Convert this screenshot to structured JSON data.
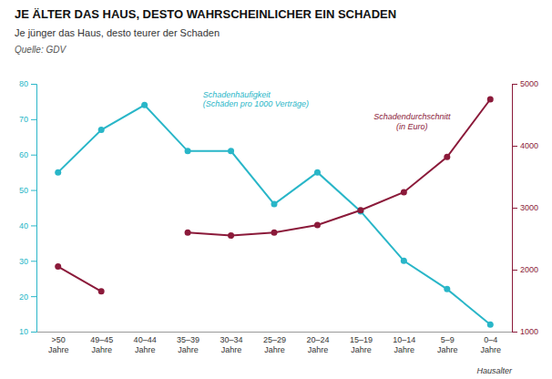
{
  "chart_data": {
    "type": "line",
    "title": "JE ÄLTER DAS HAUS, DESTO WAHRSCHEINLICHER EIN SCHADEN",
    "subtitle": "Je jünger das Haus, desto teurer der Schaden",
    "source": "Quelle: GDV",
    "x_label": "Hausalter",
    "categories": [
      ">50\nJahre",
      "49–45\nJahre",
      "40–44\nJahre",
      "35–39\nJahre",
      "30–34\nJahre",
      "25–29\nJahre",
      "20–24\nJahre",
      "15–19\nJahre",
      "10–14\nJahre",
      "5–9\nJahre",
      "0–4\nJahre"
    ],
    "series": [
      {
        "name": "Schadenhäufigkeit\n(Schäden pro 1000 Verträge)",
        "color": "#29b6c8",
        "marker": "circle",
        "values": [
          55,
          67,
          74,
          61,
          61,
          46,
          55,
          44,
          30,
          22,
          12
        ]
      },
      {
        "name": "Schadendurchschnitt\n(in Euro)",
        "color": "#8b1a3a",
        "marker": "circle",
        "axis": "y2",
        "values": [
          2050,
          1650,
          null,
          2600,
          2550,
          2600,
          2720,
          2960,
          3250,
          3820,
          4750
        ]
      }
    ],
    "ylim": [
      10,
      80
    ],
    "yticks": [
      10,
      20,
      30,
      40,
      50,
      60,
      70,
      80
    ],
    "y2lim": [
      1000,
      5000
    ],
    "y2ticks": [
      1000,
      2000,
      3000,
      4000,
      5000
    ],
    "grid": false
  }
}
